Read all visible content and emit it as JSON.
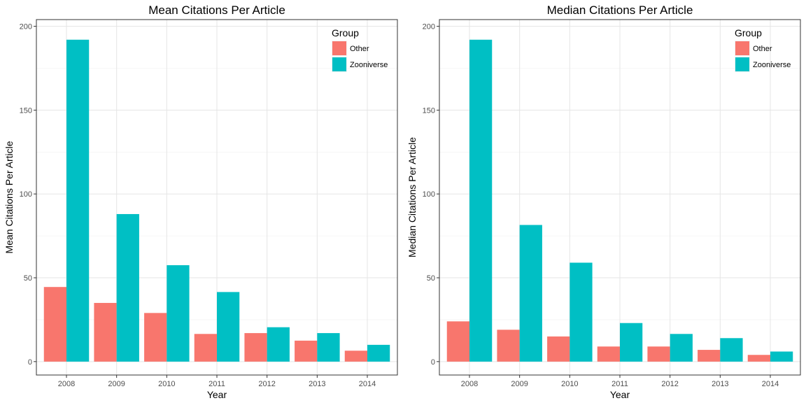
{
  "chart_data": [
    {
      "type": "bar",
      "title": "Mean Citations Per Article",
      "xlabel": "Year",
      "ylabel": "Mean Citations Per Article",
      "categories": [
        "2008",
        "2009",
        "2010",
        "2011",
        "2012",
        "2013",
        "2014"
      ],
      "ylim": [
        -8,
        204
      ],
      "yticks": [
        0,
        50,
        100,
        150,
        200
      ],
      "grid": true,
      "legend": {
        "title": "Group",
        "position": "top-right"
      },
      "series": [
        {
          "name": "Other",
          "color": "#F8766D",
          "values": [
            44.5,
            35,
            29,
            16.5,
            17,
            12.5,
            6.5
          ]
        },
        {
          "name": "Zooniverse",
          "color": "#00BFC4",
          "values": [
            192,
            88,
            57.5,
            41.5,
            20.5,
            17,
            10
          ]
        }
      ]
    },
    {
      "type": "bar",
      "title": "Median Citations Per Article",
      "xlabel": "Year",
      "ylabel": "Median Citations Per Article",
      "categories": [
        "2008",
        "2009",
        "2010",
        "2011",
        "2012",
        "2013",
        "2014"
      ],
      "ylim": [
        -8,
        204
      ],
      "yticks": [
        0,
        50,
        100,
        150,
        200
      ],
      "grid": true,
      "legend": {
        "title": "Group",
        "position": "top-right"
      },
      "series": [
        {
          "name": "Other",
          "color": "#F8766D",
          "values": [
            24,
            19,
            15,
            9,
            9,
            7,
            4
          ]
        },
        {
          "name": "Zooniverse",
          "color": "#00BFC4",
          "values": [
            192,
            81.5,
            59,
            23,
            16.5,
            14,
            6
          ]
        }
      ]
    }
  ]
}
